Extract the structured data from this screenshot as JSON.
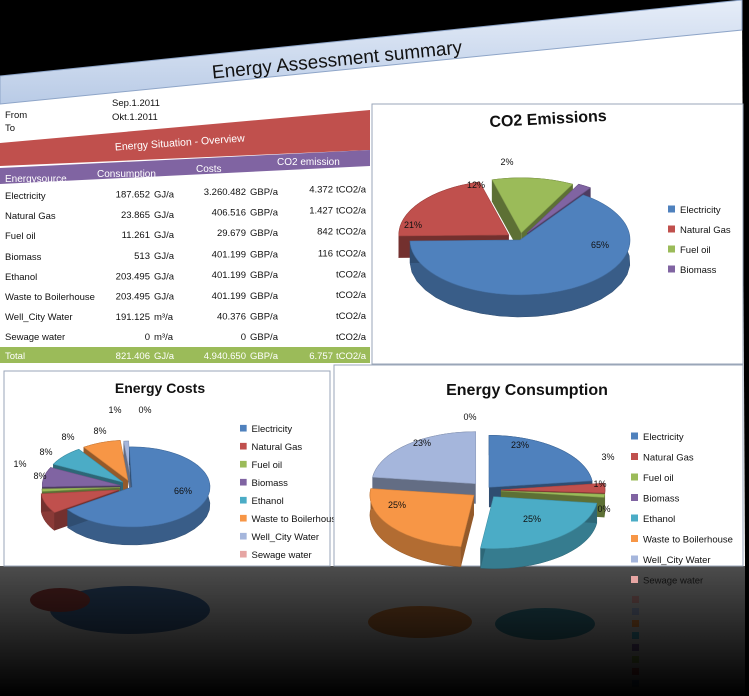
{
  "dashboard": {
    "title": "Energy Assessment summary",
    "period": {
      "from_label": "From",
      "from_value": "Sep.1.2011",
      "to_label": "To",
      "to_value": "Okt.1.2011"
    },
    "overview_title": "Energy Situation - Overview",
    "table_headers": {
      "source": "Energysource",
      "consumption": "Consumption",
      "costs": "Costs",
      "co2": "CO2 emission"
    },
    "rows": [
      {
        "name": "Electricity",
        "consumption": "187.652",
        "cons_unit": "GJ/a",
        "costs": "3.260.482",
        "cost_unit": "GBP/a",
        "co2": "4.372",
        "co2_unit": "tCO2/a"
      },
      {
        "name": "Natural Gas",
        "consumption": "23.865",
        "cons_unit": "GJ/a",
        "costs": "406.516",
        "cost_unit": "GBP/a",
        "co2": "1.427",
        "co2_unit": "tCO2/a"
      },
      {
        "name": "Fuel oil",
        "consumption": "11.261",
        "cons_unit": "GJ/a",
        "costs": "29.679",
        "cost_unit": "GBP/a",
        "co2": "842",
        "co2_unit": "tCO2/a"
      },
      {
        "name": "Biomass",
        "consumption": "513",
        "cons_unit": "GJ/a",
        "costs": "401.199",
        "cost_unit": "GBP/a",
        "co2": "116",
        "co2_unit": "tCO2/a"
      },
      {
        "name": "Ethanol",
        "consumption": "203.495",
        "cons_unit": "GJ/a",
        "costs": "401.199",
        "cost_unit": "GBP/a",
        "co2": "",
        "co2_unit": "tCO2/a"
      },
      {
        "name": "Waste to Boilerhouse",
        "consumption": "203.495",
        "cons_unit": "GJ/a",
        "costs": "401.199",
        "cost_unit": "GBP/a",
        "co2": "",
        "co2_unit": "tCO2/a"
      },
      {
        "name": "Well_City Water",
        "consumption": "191.125",
        "cons_unit": "m³/a",
        "costs": "40.376",
        "cost_unit": "GBP/a",
        "co2": "",
        "co2_unit": "tCO2/a"
      },
      {
        "name": "Sewage water",
        "consumption": "0",
        "cons_unit": "m³/a",
        "costs": "0",
        "cost_unit": "GBP/a",
        "co2": "",
        "co2_unit": "tCO2/a"
      }
    ],
    "total": {
      "name": "Total",
      "consumption": "821.406",
      "cons_unit": "GJ/a",
      "costs": "4.940.650",
      "cost_unit": "GBP/a",
      "co2": "6.757",
      "co2_unit": "tCO2/a"
    },
    "colors": {
      "electricity": "#4f81bd",
      "natural_gas": "#c0504d",
      "fuel_oil": "#9bbb59",
      "biomass": "#8064a2",
      "ethanol": "#4bacc6",
      "waste": "#f79646",
      "well_water": "#a5b6dc",
      "sewage": "#e6a5a3",
      "banner": "#ccd9ee",
      "overview_header": "#c0504d",
      "column_header": "#8064a2",
      "total_row": "#9bbb59"
    }
  },
  "chart_data": [
    {
      "type": "pie",
      "title": "CO2 Emissions",
      "legend_position": "right",
      "categories": [
        "Electricity",
        "Natural Gas",
        "Fuel oil",
        "Biomass"
      ],
      "values": [
        65,
        21,
        12,
        2
      ],
      "labels": [
        "65%",
        "21%",
        "12%",
        "2%"
      ]
    },
    {
      "type": "pie",
      "title": "Energy Costs",
      "legend_position": "right",
      "categories": [
        "Electricity",
        "Natural Gas",
        "Fuel oil",
        "Biomass",
        "Ethanol",
        "Waste to Boilerhouse",
        "Well_City Water",
        "Sewage water"
      ],
      "values": [
        66,
        8,
        1,
        8,
        8,
        8,
        1,
        0
      ],
      "labels": [
        "66%",
        "8%",
        "1%",
        "8%",
        "8%",
        "8%",
        "1%",
        "0%"
      ]
    },
    {
      "type": "pie",
      "title": "Energy Consumption",
      "legend_position": "right",
      "categories": [
        "Electricity",
        "Natural Gas",
        "Fuel oil",
        "Biomass",
        "Ethanol",
        "Waste to Boilerhouse",
        "Well_City Water",
        "Sewage water"
      ],
      "values": [
        23,
        3,
        1,
        0,
        25,
        25,
        23,
        0
      ],
      "labels": [
        "23%",
        "3%",
        "1%",
        "0%",
        "25%",
        "25%",
        "23%",
        "0%"
      ]
    }
  ]
}
